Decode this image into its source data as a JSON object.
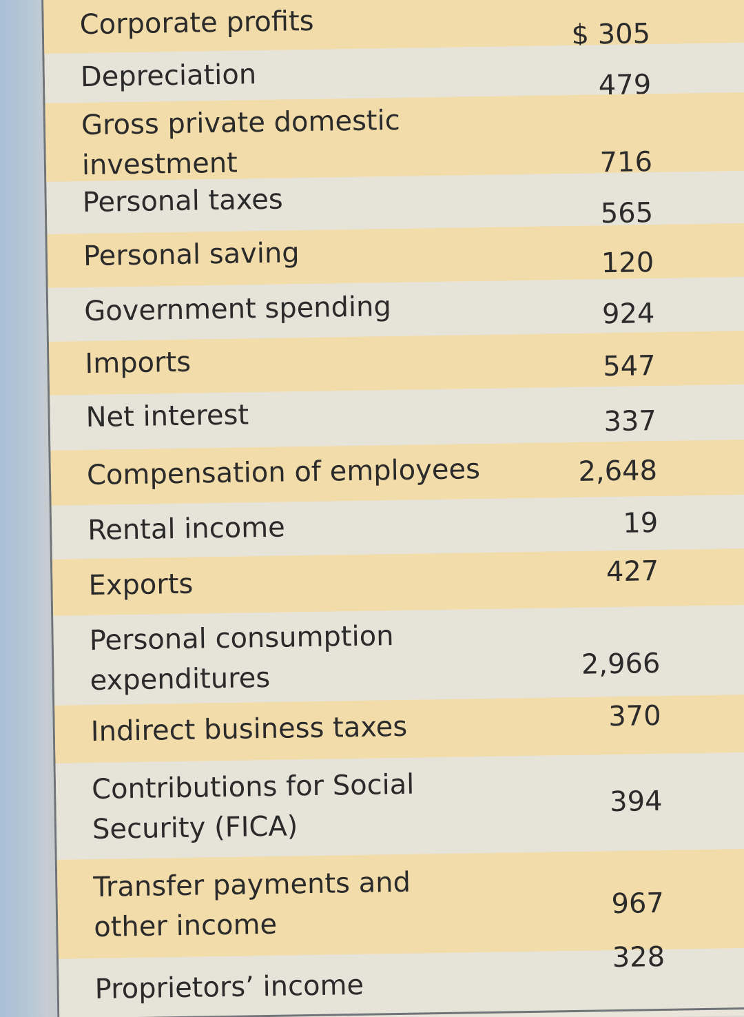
{
  "rows": [
    {
      "label": "Corporate profits",
      "value": "$ 305"
    },
    {
      "label": "Depreciation",
      "value": "479"
    },
    {
      "label": "Gross private domestic\ninvestment",
      "value": "716"
    },
    {
      "label": "Personal taxes",
      "value": "565"
    },
    {
      "label": "Personal saving",
      "value": "120"
    },
    {
      "label": "Government spending",
      "value": "924"
    },
    {
      "label": "Imports",
      "value": "547"
    },
    {
      "label": "Net interest",
      "value": "337"
    },
    {
      "label": "Compensation of employees",
      "value": "2,648"
    },
    {
      "label": "Rental income",
      "value": "19"
    },
    {
      "label": "Exports",
      "value": "427"
    },
    {
      "label": "Personal consumption\nexpenditures",
      "value": "2,966"
    },
    {
      "label": "Indirect business taxes",
      "value": "370"
    },
    {
      "label": "Contributions for Social\nSecurity (FICA)",
      "value": "394"
    },
    {
      "label": "Transfer payments and\nother income",
      "value": "967"
    },
    {
      "label": "Proprietors’ income",
      "value": "328"
    }
  ]
}
